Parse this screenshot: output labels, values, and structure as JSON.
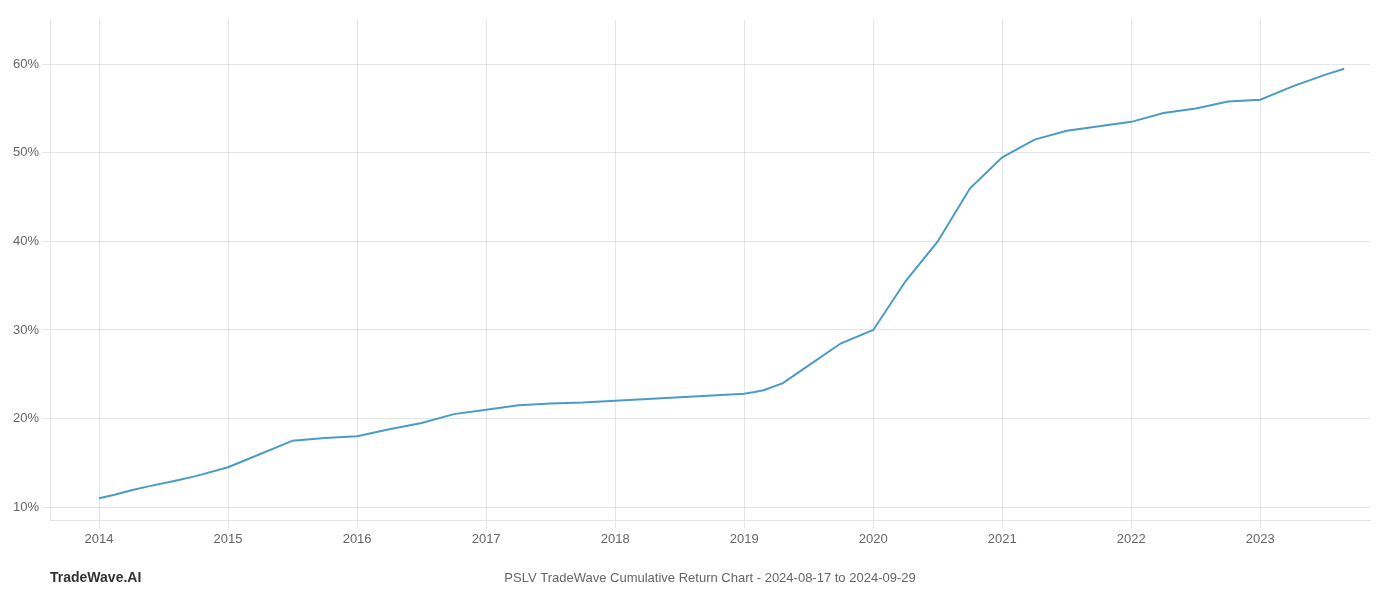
{
  "chart_data": {
    "type": "line",
    "title": "PSLV TradeWave Cumulative Return Chart - 2024-08-17 to 2024-09-29",
    "annotations": [
      "TradeWave.AI"
    ],
    "color": "#4a9cc7",
    "x": [
      2014.0,
      2014.12,
      2014.25,
      2014.4,
      2014.6,
      2014.75,
      2015.0,
      2015.25,
      2015.5,
      2015.75,
      2016.0,
      2016.25,
      2016.5,
      2016.75,
      2017.0,
      2017.25,
      2017.5,
      2017.75,
      2018.0,
      2018.25,
      2018.5,
      2018.75,
      2019.0,
      2019.08,
      2019.15,
      2019.3,
      2019.5,
      2019.75,
      2020.0,
      2020.25,
      2020.5,
      2020.75,
      2021.0,
      2021.25,
      2021.5,
      2021.75,
      2022.0,
      2022.25,
      2022.5,
      2022.75,
      2023.0,
      2023.25,
      2023.5,
      2023.65
    ],
    "values": [
      11.0,
      11.4,
      11.9,
      12.4,
      13.0,
      13.5,
      14.5,
      16.0,
      17.5,
      17.8,
      18.0,
      18.8,
      19.5,
      20.5,
      21.0,
      21.5,
      21.7,
      21.8,
      22.0,
      22.2,
      22.4,
      22.6,
      22.8,
      23.0,
      23.2,
      24.0,
      26.0,
      28.5,
      30.0,
      35.5,
      40.0,
      46.0,
      49.5,
      51.5,
      52.5,
      53.0,
      53.5,
      54.5,
      55.0,
      55.8,
      56.0,
      57.5,
      58.8,
      59.5
    ],
    "xlim": [
      2013.62,
      2023.85
    ],
    "ylim": [
      8.5,
      65
    ],
    "xticks": [
      2014,
      2015,
      2016,
      2017,
      2018,
      2019,
      2020,
      2021,
      2022,
      2023
    ],
    "yticks": [
      {
        "value": 10,
        "label": "10%"
      },
      {
        "value": 20,
        "label": "20%"
      },
      {
        "value": 30,
        "label": "30%"
      },
      {
        "value": 40,
        "label": "40%"
      },
      {
        "value": 50,
        "label": "50%"
      },
      {
        "value": 60,
        "label": "60%"
      }
    ],
    "grid": true
  }
}
